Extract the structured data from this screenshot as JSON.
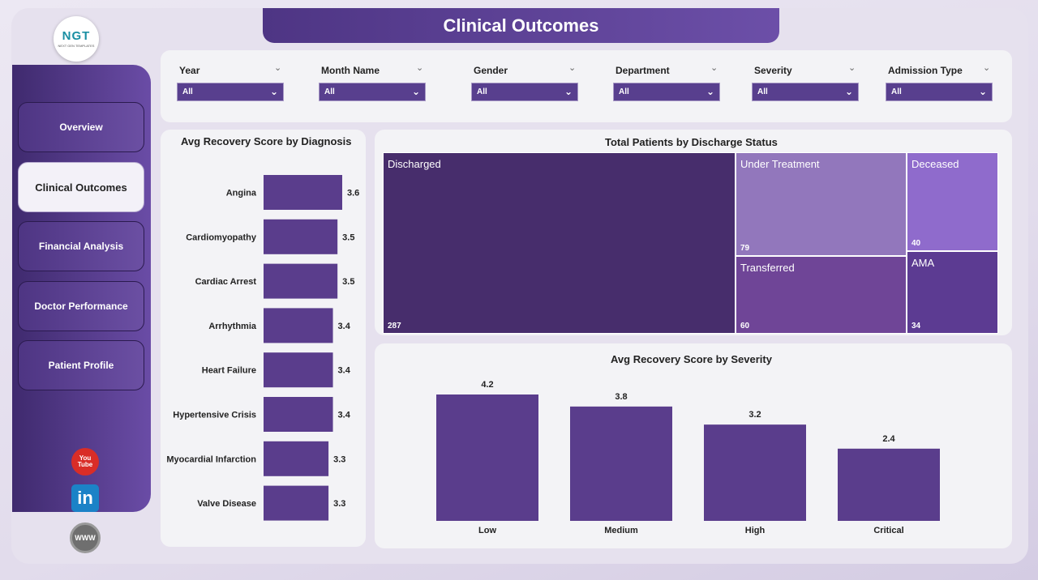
{
  "app": {
    "title": "Clinical Outcomes",
    "logo_text": "NGT",
    "logo_subtext": "NEXT GEN TEMPLATES"
  },
  "nav": {
    "items": [
      {
        "label": "Overview",
        "active": false
      },
      {
        "label": "Clinical Outcomes",
        "active": true
      },
      {
        "label": "Financial Analysis",
        "active": false
      },
      {
        "label": "Doctor Performance",
        "active": false
      },
      {
        "label": "Patient Profile",
        "active": false
      }
    ]
  },
  "social": {
    "youtube_text_1": "You",
    "youtube_text_2": "Tube",
    "linkedin_text": "in",
    "web_text": "WWW"
  },
  "filters": [
    {
      "label": "Year",
      "value": "All"
    },
    {
      "label": "Month Name",
      "value": "All"
    },
    {
      "label": "Gender",
      "value": "All"
    },
    {
      "label": "Department",
      "value": "All"
    },
    {
      "label": "Severity",
      "value": "All"
    },
    {
      "label": "Admission Type",
      "value": "All"
    }
  ],
  "colors": {
    "accent": "#583f8e",
    "bar": "#5a3d8c",
    "panel": "#f3f3f6"
  },
  "chart_data": [
    {
      "type": "bar",
      "orientation": "horizontal",
      "title": "Avg Recovery Score by Diagnosis",
      "categories": [
        "Angina",
        "Cardiomyopathy",
        "Cardiac Arrest",
        "Arrhythmia",
        "Heart Failure",
        "Hypertensive Crisis",
        "Myocardial Infarction",
        "Valve Disease"
      ],
      "values": [
        3.6,
        3.5,
        3.5,
        3.4,
        3.4,
        3.4,
        3.3,
        3.3
      ],
      "labels": [
        "3.6",
        "3.5",
        "3.5",
        "3.4",
        "3.4",
        "3.4",
        "3.3",
        "3.3"
      ]
    },
    {
      "type": "treemap",
      "title": "Total Patients by Discharge Status",
      "items": [
        {
          "name": "Discharged",
          "value": 287,
          "color": "#472d6c"
        },
        {
          "name": "Under Treatment",
          "value": 79,
          "color": "#9277bc"
        },
        {
          "name": "Deceased",
          "value": 40,
          "color": "#8f6bcc"
        },
        {
          "name": "Transferred",
          "value": 60,
          "color": "#6f4597"
        },
        {
          "name": "AMA",
          "value": 34,
          "color": "#5c3b92"
        }
      ]
    },
    {
      "type": "bar",
      "title": "Avg Recovery Score by Severity",
      "categories": [
        "Low",
        "Medium",
        "High",
        "Critical"
      ],
      "values": [
        4.2,
        3.8,
        3.2,
        2.4
      ],
      "labels": [
        "4.2",
        "3.8",
        "3.2",
        "2.4"
      ]
    }
  ]
}
